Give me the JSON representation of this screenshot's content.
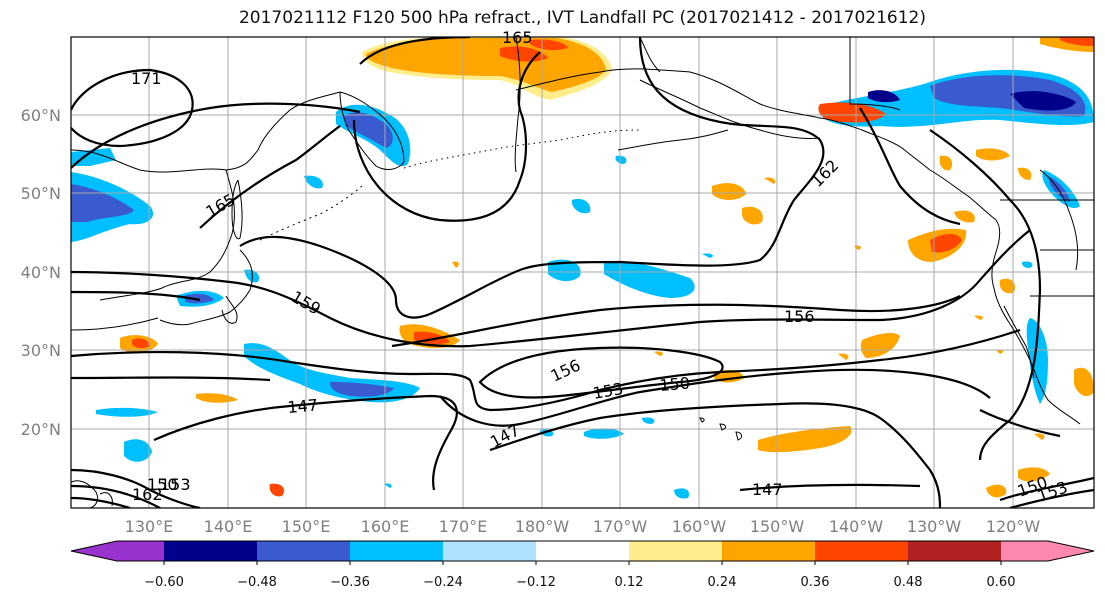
{
  "title": "2017021112 F120 500 hPa refract., IVT Landfall PC (2017021412 - 2017021612)",
  "lat_labels": [
    "60°N",
    "50°N",
    "40°N",
    "30°N",
    "20°N"
  ],
  "lon_labels": [
    "130°E",
    "140°E",
    "150°E",
    "160°E",
    "170°E",
    "180°W",
    "170°W",
    "160°W",
    "150°W",
    "140°W",
    "130°W",
    "120°W"
  ],
  "colorbar": {
    "ticks": [
      "−0.60",
      "−0.48",
      "−0.36",
      "−0.24",
      "−0.12",
      "0.12",
      "0.24",
      "0.36",
      "0.48",
      "0.60"
    ],
    "colors": [
      "#9932CC",
      "#00008B",
      "#3A5BD0",
      "#00BFFF",
      "#B0E2FF",
      "#FFFFFF",
      "#FFEC8B",
      "#FFA500",
      "#FF4500",
      "#B22222",
      "#FF88B0"
    ]
  },
  "contour_labels": [
    "171",
    "165",
    "159",
    "162",
    "156",
    "156",
    "153",
    "150",
    "147",
    "147",
    "147",
    "150",
    "153",
    "150",
    "153",
    "162",
    "165"
  ],
  "colors": {
    "contour": "#000000",
    "grid": "#a9a9a9",
    "coast": "#000000"
  }
}
